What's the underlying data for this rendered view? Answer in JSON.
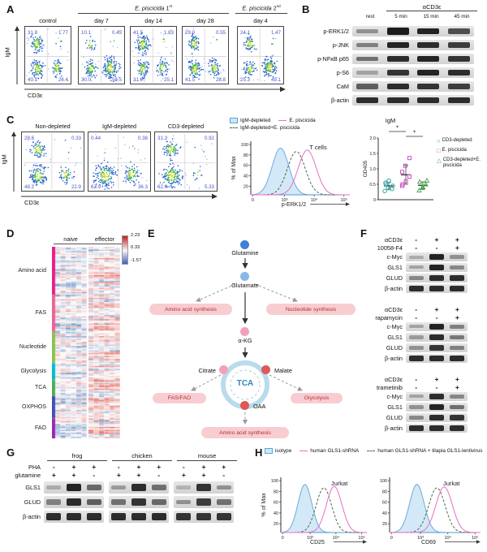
{
  "A": {
    "label": "A",
    "y_axis": "IgM",
    "x_axis": "CD3ε",
    "groups": [
      {
        "italic": "E. piscicida",
        "num": " 1",
        "sup": "st"
      },
      {
        "italic": "E. piscicida",
        "num": " 2",
        "sup": "nd"
      }
    ],
    "plots": [
      {
        "title": "control",
        "q": [
          "31.8",
          "1.77",
          "40.1",
          "26.4"
        ]
      },
      {
        "title": "day 7",
        "q": [
          "10.1",
          "0.45",
          "30.0",
          "59.5"
        ]
      },
      {
        "title": "day 14",
        "q": [
          "41.5",
          "1.83",
          "31.0",
          "25.1"
        ]
      },
      {
        "title": "day 28",
        "q": [
          "29.0",
          "0.55",
          "41.5",
          "28.8"
        ]
      },
      {
        "title": "day 4",
        "q": [
          "24.1",
          "1.47",
          "25.3",
          "49.1"
        ]
      }
    ]
  },
  "B": {
    "label": "B",
    "header": "αCD3ε",
    "lanes": [
      "rest",
      "5 min",
      "15 min",
      "45 min"
    ],
    "rows": [
      {
        "name": "p-ERK1/2",
        "bands": [
          0.3,
          1.0,
          0.95,
          0.7
        ]
      },
      {
        "name": "p-JNK",
        "bands": [
          0.4,
          0.95,
          0.9,
          0.8
        ]
      },
      {
        "name": "p-NFκB p65",
        "bands": [
          0.5,
          0.9,
          0.95,
          0.85
        ]
      },
      {
        "name": "p-S6",
        "bands": [
          0.2,
          0.85,
          0.95,
          0.9
        ]
      },
      {
        "name": "CaM",
        "bands": [
          0.6,
          0.9,
          0.85,
          0.8
        ]
      },
      {
        "name": "β-actin",
        "bands": [
          0.9,
          0.9,
          0.9,
          0.9
        ]
      }
    ]
  },
  "C": {
    "label": "C",
    "y_axis": "IgM",
    "x_axis": "CD3ε",
    "plots": [
      {
        "title": "Non-depleted",
        "q": [
          "28.6",
          "0.33",
          "48.2",
          "22.9"
        ]
      },
      {
        "title": "IgM-depleted",
        "q": [
          "0.44",
          "0.38",
          "62.9",
          "36.3"
        ]
      },
      {
        "title": "CD3-depleted",
        "q": [
          "31.2",
          "0.92",
          "62.6",
          "5.33"
        ]
      }
    ],
    "hist": {
      "legend": [
        {
          "label": "IgM-depleted",
          "type": "fill"
        },
        {
          "label": "E. piscicida",
          "type": "pink"
        },
        {
          "label": "IgM-depleted+E. piscicida",
          "type": "dash"
        }
      ],
      "title": "T cells",
      "xlabel": "p-ERK1/2",
      "ylabel": "% of Max",
      "yticks": [
        "100",
        "80",
        "60",
        "40",
        "20"
      ],
      "xticks": [
        "0",
        "10³",
        "10⁴",
        "10⁵"
      ],
      "curves": [
        {
          "style": "fill",
          "peak": 0.3,
          "sd": 0.085,
          "amp": 0.97
        },
        {
          "style": "dash",
          "peak": 0.46,
          "sd": 0.09,
          "amp": 0.9
        },
        {
          "style": "pink",
          "peak": 0.57,
          "sd": 0.09,
          "amp": 0.93
        }
      ]
    },
    "scatter": {
      "title": "IgM",
      "ylabel": "OD405",
      "yticks": [
        "2.0",
        "1.5",
        "1.0",
        "0.5",
        "0"
      ],
      "sig": [
        "*",
        "*"
      ],
      "groups": [
        {
          "label": "CD3-depleted",
          "marker": "circle",
          "color": "#2aa7a0",
          "values": [
            0.28,
            0.38,
            0.45,
            0.5,
            0.62,
            0.35,
            0.55
          ]
        },
        {
          "label": "E. piscicida",
          "marker": "square",
          "color": "#cc4ec4",
          "values": [
            0.45,
            0.6,
            0.75,
            0.9,
            1.1,
            1.35,
            0.5
          ]
        },
        {
          "label": "CD3-depleted+E. piscicida",
          "marker": "triangle",
          "color": "#4caf50",
          "values": [
            0.3,
            0.42,
            0.5,
            0.58,
            0.38,
            0.62
          ]
        }
      ]
    }
  },
  "D": {
    "label": "D",
    "col_headers": [
      "naive",
      "effector"
    ],
    "categories": [
      {
        "name": "Amino acid",
        "rows": 34,
        "strip": "#e91e8c"
      },
      {
        "name": "FAS",
        "rows": 26,
        "strip": "#f06292"
      },
      {
        "name": "Nucleotide",
        "rows": 22,
        "strip": "#8bc34a"
      },
      {
        "name": "Glycolysis",
        "rows": 12,
        "strip": "#00bcd4"
      },
      {
        "name": "TCA",
        "rows": 11,
        "strip": "#4caf50"
      },
      {
        "name": "OXPHOS",
        "rows": 16,
        "strip": "#3f51b5"
      },
      {
        "name": "FAO",
        "rows": 14,
        "strip": "#9c27b0"
      }
    ],
    "scale": [
      "2.23",
      "0.33",
      "-1.57"
    ],
    "n_naive": 6,
    "n_effector": 6
  },
  "E": {
    "label": "E",
    "nodes": {
      "glutamine": "Glutamine",
      "glutamate": "Glutamate",
      "aa_syn_top": "Amino acid synthesis",
      "nuc_syn": "Nucleotide synthesis",
      "akg": "α-KG",
      "tca": "TCA",
      "citrate": "Citrate",
      "malate": "Malate",
      "oaa": "OAA",
      "fas_fao": "FAS/FAO",
      "glycolysis": "Glycolysis",
      "aa_syn_bottom": "Amino acid synthesis"
    }
  },
  "F": {
    "label": "F",
    "blocks": [
      {
        "stim": "αCD3ε",
        "stim_vals": [
          "-",
          "+",
          "+"
        ],
        "drug": "10058-F4",
        "drug_vals": [
          "-",
          "-",
          "+"
        ],
        "rows": [
          {
            "name": "c-Myc",
            "bands": [
              0.15,
              0.95,
              0.3
            ]
          },
          {
            "name": "GLS1",
            "bands": [
              0.2,
              0.95,
              0.35
            ]
          },
          {
            "name": "GLUD",
            "bands": [
              0.35,
              0.9,
              0.9
            ]
          },
          {
            "name": "β-actin",
            "bands": [
              0.9,
              0.9,
              0.9
            ]
          }
        ]
      },
      {
        "stim": "αCD3ε",
        "stim_vals": [
          "-",
          "+",
          "+"
        ],
        "drug": "rapamycin",
        "drug_vals": [
          "-",
          "-",
          "+"
        ],
        "rows": [
          {
            "name": "c-Myc",
            "bands": [
              0.2,
              0.95,
              0.4
            ]
          },
          {
            "name": "GLS1",
            "bands": [
              0.25,
              0.9,
              0.45
            ]
          },
          {
            "name": "GLUD",
            "bands": [
              0.3,
              0.85,
              0.4
            ]
          },
          {
            "name": "β-actin",
            "bands": [
              0.9,
              0.9,
              0.9
            ]
          }
        ]
      },
      {
        "stim": "αCD3ε",
        "stim_vals": [
          "-",
          "+",
          "+"
        ],
        "drug": "trametinib",
        "drug_vals": [
          "-",
          "-",
          "+"
        ],
        "rows": [
          {
            "name": "c-Myc",
            "bands": [
              0.2,
              0.9,
              0.35
            ]
          },
          {
            "name": "GLS1",
            "bands": [
              0.3,
              0.95,
              0.5
            ]
          },
          {
            "name": "GLUD",
            "bands": [
              0.35,
              0.9,
              0.85
            ]
          },
          {
            "name": "β-actin",
            "bands": [
              0.9,
              0.9,
              0.9
            ]
          }
        ]
      }
    ]
  },
  "G": {
    "label": "G",
    "species": [
      "frog",
      "chicken",
      "mouse"
    ],
    "cond_rows": [
      {
        "name": "PHA",
        "vals": [
          [
            "-",
            "+",
            "+"
          ],
          [
            "-",
            "+",
            "+"
          ],
          [
            "-",
            "+",
            "+"
          ]
        ]
      },
      {
        "name": "glutamine",
        "vals": [
          [
            "+",
            "+",
            "-"
          ],
          [
            "+",
            "+",
            "-"
          ],
          [
            "+",
            "+",
            "-"
          ]
        ]
      }
    ],
    "protein_rows": [
      {
        "name": "GLS1",
        "bands": [
          [
            0.15,
            0.95,
            0.55
          ],
          [
            0.25,
            0.9,
            0.5
          ],
          [
            0.1,
            0.85,
            0.3
          ]
        ]
      },
      {
        "name": "GLUD",
        "bands": [
          [
            0.4,
            0.9,
            0.6
          ],
          [
            0.5,
            0.85,
            0.55
          ],
          [
            0.3,
            0.8,
            0.5
          ]
        ]
      },
      {
        "name": "β-actin",
        "bands": [
          [
            0.9,
            0.9,
            0.9
          ],
          [
            0.9,
            0.9,
            0.9
          ],
          [
            0.85,
            0.85,
            0.85
          ]
        ]
      }
    ]
  },
  "H": {
    "label": "H",
    "legend": [
      {
        "label": "isotype",
        "type": "fill"
      },
      {
        "label": "human GLS1-shRNA",
        "type": "pink"
      },
      {
        "label": "human GLS1-shRNA + tilapia GLS1-lentivirus",
        "type": "dash"
      }
    ],
    "ylabel": "% of Max",
    "plots": [
      {
        "title": "Jurkat",
        "xlabel": "CD25",
        "ylabel": "% of Max",
        "yticks": [
          "100",
          "80",
          "60",
          "40",
          "20"
        ],
        "xticks": [
          "0",
          "10³",
          "10⁴",
          "10⁵"
        ],
        "curves": [
          {
            "style": "fill",
            "peak": 0.28,
            "sd": 0.08,
            "amp": 0.97
          },
          {
            "style": "dash",
            "peak": 0.5,
            "sd": 0.09,
            "amp": 0.9
          },
          {
            "style": "pink",
            "peak": 0.62,
            "sd": 0.09,
            "amp": 0.93
          }
        ]
      },
      {
        "title": "Jurkat",
        "xlabel": "CD69",
        "yticks": [
          "100",
          "80",
          "60",
          "40",
          "20"
        ],
        "xticks": [
          "0",
          "10³",
          "10⁴",
          "10⁵"
        ],
        "curves": [
          {
            "style": "fill",
            "peak": 0.3,
            "sd": 0.08,
            "amp": 0.97
          },
          {
            "style": "dash",
            "peak": 0.52,
            "sd": 0.09,
            "amp": 0.9
          },
          {
            "style": "pink",
            "peak": 0.6,
            "sd": 0.09,
            "amp": 0.92
          }
        ]
      }
    ]
  }
}
